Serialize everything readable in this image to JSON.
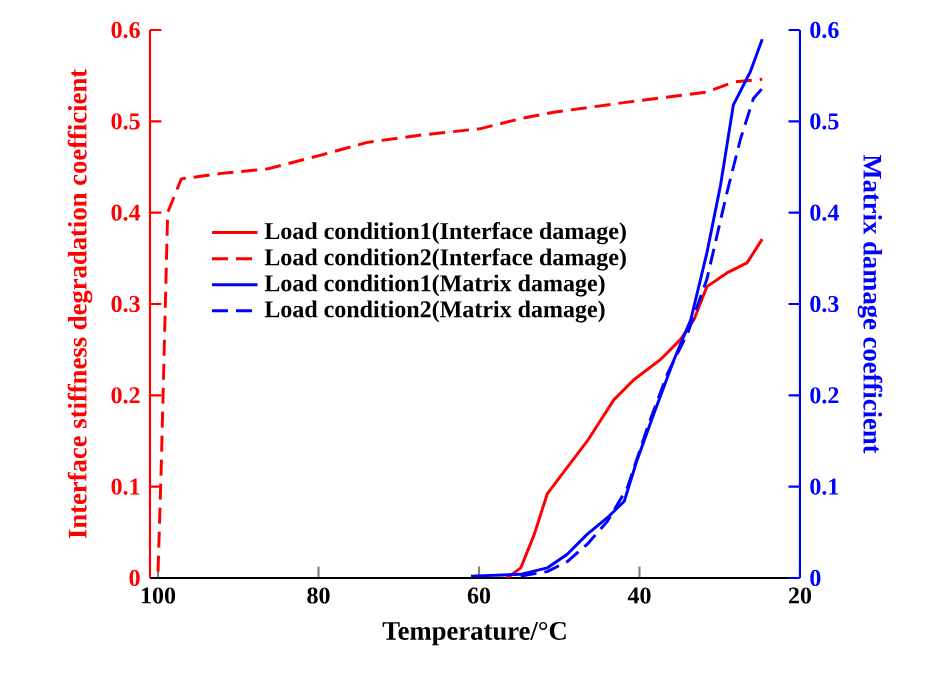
{
  "chart_data": {
    "type": "line",
    "xlabel": "Temperature/°C",
    "ylabel": "Interface stiffness degradation coefficient",
    "y2label": "Matrix damage coefficient",
    "xlim": [
      101,
      20
    ],
    "xticks": [
      100,
      80,
      60,
      40,
      20
    ],
    "ylim": [
      0,
      0.6
    ],
    "yticks": [
      0,
      0.1,
      0.2,
      0.3,
      0.4,
      0.5,
      0.6
    ],
    "y2lim": [
      0,
      0.6
    ],
    "y2ticks": [
      0,
      0.1,
      0.2,
      0.3,
      0.4,
      0.5,
      0.6
    ],
    "legend": "left",
    "grid": false,
    "marker": "none",
    "series": [
      {
        "name": "Load condition1(Interface damage)",
        "color": "#ff0000",
        "line_style": "solid",
        "x": [
          56.5,
          54.8,
          53.1,
          51.5,
          49.0,
          46.5,
          43.2,
          40.7,
          37.4,
          34.9,
          33.2,
          31.6,
          29.1,
          26.6,
          24.7
        ],
        "values": [
          0,
          0.011,
          0.048,
          0.092,
          0.121,
          0.15,
          0.195,
          0.217,
          0.239,
          0.261,
          0.283,
          0.319,
          0.334,
          0.345,
          0.371
        ]
      },
      {
        "name": "Load condition2(Interface damage)",
        "color": "#ff0000",
        "line_style": "dashed",
        "x": [
          100,
          99.6,
          98.8,
          97.1,
          92.1,
          86.3,
          79.7,
          73.9,
          67.2,
          59.8,
          54.8,
          50.7,
          41.5,
          31.6,
          28.3,
          24.7
        ],
        "values": [
          0.007,
          0.121,
          0.4,
          0.437,
          0.443,
          0.448,
          0.463,
          0.477,
          0.485,
          0.492,
          0.503,
          0.51,
          0.521,
          0.532,
          0.543,
          0.546
        ]
      },
      {
        "name": "Load condition1(Matrix damage)",
        "color": "#0000ff",
        "line_style": "solid",
        "axis": "y2",
        "x": [
          61.0,
          54.8,
          51.5,
          49.0,
          46.5,
          44.0,
          41.9,
          40.3,
          38.2,
          35.7,
          33.6,
          31.6,
          29.9,
          28.3,
          26.2,
          24.7
        ],
        "values": [
          0.002,
          0.004,
          0.011,
          0.026,
          0.048,
          0.066,
          0.084,
          0.129,
          0.18,
          0.239,
          0.283,
          0.356,
          0.43,
          0.518,
          0.554,
          0.59
        ]
      },
      {
        "name": "Load condition2(Matrix damage)",
        "color": "#0000ff",
        "line_style": "dashed",
        "axis": "y2",
        "x": [
          54.8,
          51.5,
          49.0,
          46.5,
          44.0,
          41.5,
          39.0,
          36.5,
          34.0,
          31.6,
          29.1,
          27.4,
          25.8,
          24.7
        ],
        "values": [
          0.002,
          0.007,
          0.018,
          0.037,
          0.062,
          0.099,
          0.165,
          0.224,
          0.268,
          0.327,
          0.422,
          0.481,
          0.525,
          0.536
        ]
      }
    ]
  }
}
